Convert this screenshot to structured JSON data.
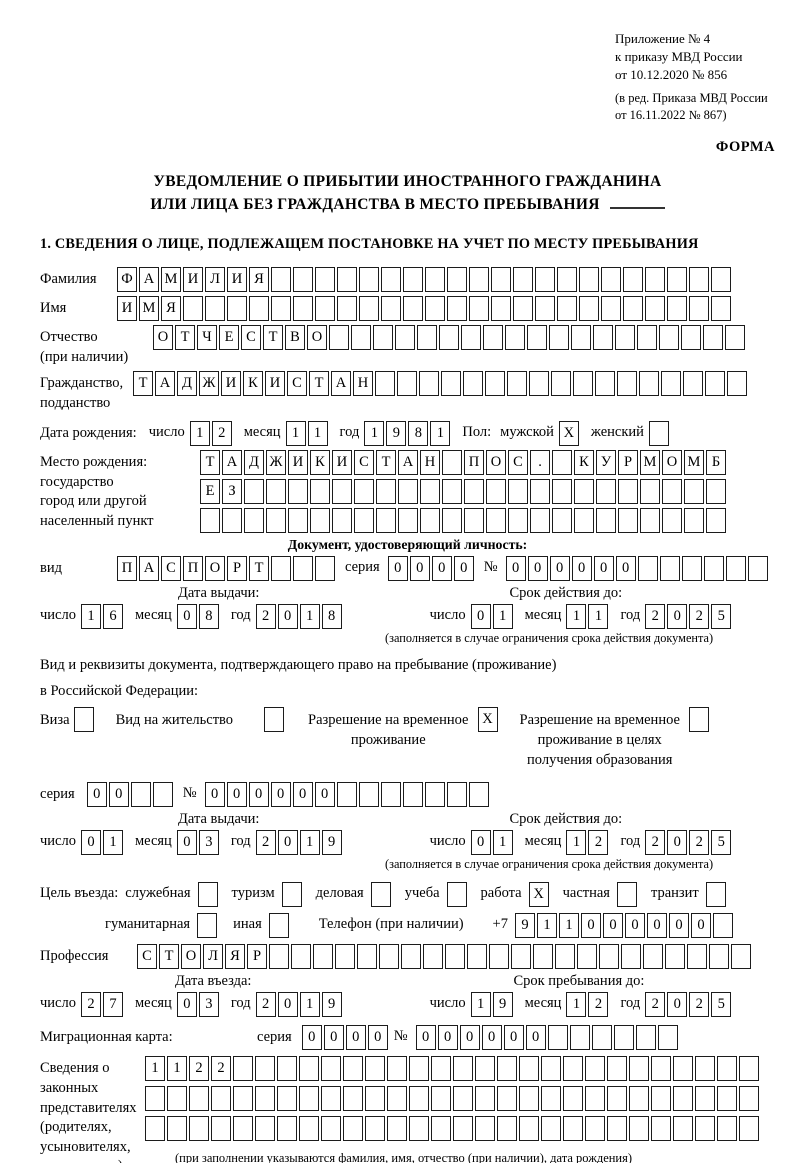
{
  "header": {
    "appendix_lines": [
      "Приложение № 4",
      "к приказу МВД России",
      "от 10.12.2020 № 856"
    ],
    "amendment_lines": [
      "(в ред. Приказа МВД России",
      "от 16.11.2022 № 867)"
    ],
    "form_label": "ФОРМА"
  },
  "title": {
    "line1": "УВЕДОМЛЕНИЕ О ПРИБЫТИИ ИНОСТРАННОГО ГРАЖДАНИНА",
    "line2": "ИЛИ ЛИЦА БЕЗ ГРАЖДАНСТВА В МЕСТО ПРЕБЫВАНИЯ"
  },
  "section1_heading": "1. СВЕДЕНИЯ О ЛИЦЕ, ПОДЛЕЖАЩЕМ ПОСТАНОВКЕ НА УЧЕТ ПО МЕСТУ ПРЕБЫВАНИЯ",
  "labels": {
    "day": "число",
    "month": "месяц",
    "year": "год",
    "series": "серия",
    "number": "№",
    "issue_date": "Дата выдачи:",
    "valid_until": "Срок действия до:",
    "entry_date": "Дата въезда:",
    "stay_until": "Срок пребывания до:",
    "limit_note": "(заполняется в случае ограничения срока действия документа)",
    "sex": "Пол:",
    "male": "мужской",
    "female": "женский",
    "phone": "Телефон (при наличии)",
    "phone_prefix": "+7"
  },
  "fields": {
    "surname": {
      "label": "Фамилия",
      "value": "ФАМИЛИЯ",
      "total": 28
    },
    "firstname": {
      "label": "Имя",
      "value": "ИМЯ",
      "total": 28
    },
    "patronymic": {
      "label_lines": [
        "Отчество",
        "(при наличии)"
      ],
      "value": "ОТЧЕСТВО",
      "total": 27
    },
    "citizenship": {
      "label_lines": [
        "Гражданство,",
        "подданство"
      ],
      "value": "ТАДЖИКИСТАН",
      "total": 28
    },
    "birth_date": {
      "label": "Дата рождения:",
      "day": {
        "value": "12",
        "total": 2
      },
      "month": {
        "value": "11",
        "total": 2
      },
      "year": {
        "value": "1981",
        "total": 4
      }
    },
    "sex": {
      "male_checked": "X",
      "female_checked": ""
    },
    "birth_place": {
      "label_lines": [
        "Место рождения:",
        "государство",
        "город или другой",
        "населенный пункт"
      ],
      "row1": {
        "value": "ТАДЖИКИСТАН ПОС. КУРМОМБ",
        "total": 24
      },
      "row2": {
        "value": "ЕЗ",
        "total": 24
      },
      "row3": {
        "value": "",
        "total": 24
      }
    },
    "identity_doc": {
      "heading": "Документ, удостоверяющий личность:",
      "kind_label": "вид",
      "kind": {
        "value": "ПАСПОРТ",
        "total": 10
      },
      "series": {
        "value": "0000",
        "total": 4
      },
      "number": {
        "value": "000000",
        "total": 12
      },
      "issue_date": {
        "day": {
          "value": "16",
          "total": 2
        },
        "month": {
          "value": "08",
          "total": 2
        },
        "year": {
          "value": "2018",
          "total": 4
        }
      },
      "valid_until": {
        "day": {
          "value": "01",
          "total": 2
        },
        "month": {
          "value": "11",
          "total": 2
        },
        "year": {
          "value": "2025",
          "total": 4
        }
      }
    },
    "stay_doc": {
      "intro_line1": "Вид и реквизиты документа, подтверждающего право на пребывание (проживание)",
      "intro_line2": "в Российской Федерации:",
      "options": [
        {
          "label_lines": [
            "Виза"
          ],
          "checked": ""
        },
        {
          "label_lines": [
            "Вид на жительство"
          ],
          "checked": ""
        },
        {
          "label_lines": [
            "Разрешение на временное",
            "проживание"
          ],
          "checked": "X"
        },
        {
          "label_lines": [
            "Разрешение на временное",
            "проживание в целях",
            "получения образования"
          ],
          "checked": ""
        }
      ],
      "series": {
        "value": "00",
        "total": 4
      },
      "number": {
        "value": "000000",
        "total": 13
      },
      "issue_date": {
        "day": {
          "value": "01",
          "total": 2
        },
        "month": {
          "value": "03",
          "total": 2
        },
        "year": {
          "value": "2019",
          "total": 4
        }
      },
      "valid_until": {
        "day": {
          "value": "01",
          "total": 2
        },
        "month": {
          "value": "12",
          "total": 2
        },
        "year": {
          "value": "2025",
          "total": 4
        }
      }
    },
    "visit_purpose": {
      "label": "Цель въезда:",
      "options_row1": [
        {
          "label": "служебная",
          "checked": ""
        },
        {
          "label": "туризм",
          "checked": ""
        },
        {
          "label": "деловая",
          "checked": ""
        },
        {
          "label": "учеба",
          "checked": ""
        },
        {
          "label": "работа",
          "checked": "X"
        },
        {
          "label": "частная",
          "checked": ""
        },
        {
          "label": "транзит",
          "checked": ""
        }
      ],
      "options_row2": [
        {
          "label": "гуманитарная",
          "checked": ""
        },
        {
          "label": "иная",
          "checked": ""
        }
      ]
    },
    "phone": {
      "value": "911000000",
      "total": 10
    },
    "profession": {
      "label": "Профессия",
      "value": "СТОЛЯР",
      "total": 28
    },
    "entry": {
      "date": {
        "day": {
          "value": "27",
          "total": 2
        },
        "month": {
          "value": "03",
          "total": 2
        },
        "year": {
          "value": "2019",
          "total": 4
        }
      },
      "stay_until": {
        "day": {
          "value": "19",
          "total": 2
        },
        "month": {
          "value": "12",
          "total": 2
        },
        "year": {
          "value": "2025",
          "total": 4
        }
      }
    },
    "migration_card": {
      "label": "Миграционная карта:",
      "series": {
        "value": "0000",
        "total": 4
      },
      "number": {
        "value": "000000",
        "total": 12
      }
    },
    "representatives": {
      "label_lines": [
        "Сведения о",
        "законных",
        "представителях",
        "(родителях,",
        "усыновителях,",
        "попечителях)"
      ],
      "row1": {
        "value": "1122",
        "total": 28
      },
      "row2": {
        "value": "",
        "total": 28
      },
      "row3": {
        "value": "",
        "total": 28
      },
      "note": "(при заполнении указываются фамилия, имя, отчество (при наличии), дата рождения)"
    }
  }
}
